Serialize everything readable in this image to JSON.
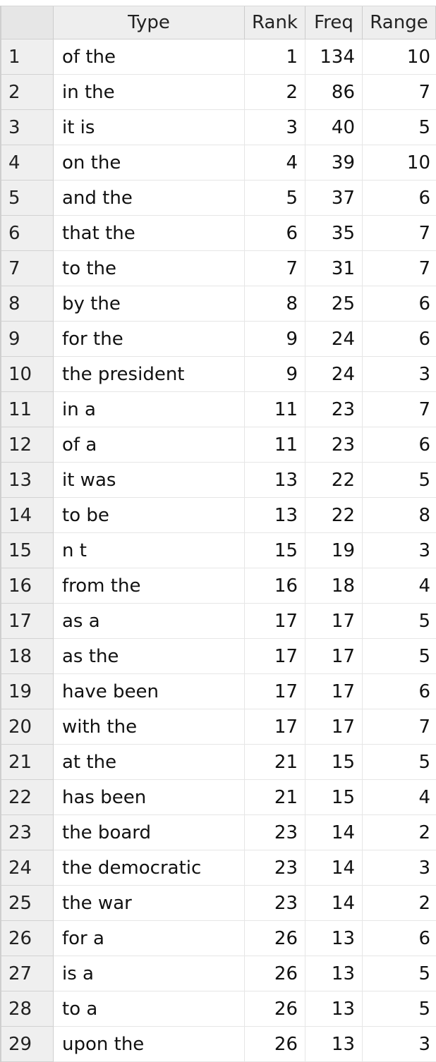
{
  "table": {
    "headers": {
      "index": "",
      "type": "Type",
      "rank": "Rank",
      "freq": "Freq",
      "range": "Range"
    },
    "rows": [
      {
        "index": "1",
        "type": "of the",
        "rank": "1",
        "freq": "134",
        "range": "10"
      },
      {
        "index": "2",
        "type": "in the",
        "rank": "2",
        "freq": "86",
        "range": "7"
      },
      {
        "index": "3",
        "type": "it is",
        "rank": "3",
        "freq": "40",
        "range": "5"
      },
      {
        "index": "4",
        "type": "on the",
        "rank": "4",
        "freq": "39",
        "range": "10"
      },
      {
        "index": "5",
        "type": "and the",
        "rank": "5",
        "freq": "37",
        "range": "6"
      },
      {
        "index": "6",
        "type": "that the",
        "rank": "6",
        "freq": "35",
        "range": "7"
      },
      {
        "index": "7",
        "type": "to the",
        "rank": "7",
        "freq": "31",
        "range": "7"
      },
      {
        "index": "8",
        "type": "by the",
        "rank": "8",
        "freq": "25",
        "range": "6"
      },
      {
        "index": "9",
        "type": "for the",
        "rank": "9",
        "freq": "24",
        "range": "6"
      },
      {
        "index": "10",
        "type": "the president",
        "rank": "9",
        "freq": "24",
        "range": "3"
      },
      {
        "index": "11",
        "type": "in a",
        "rank": "11",
        "freq": "23",
        "range": "7"
      },
      {
        "index": "12",
        "type": "of a",
        "rank": "11",
        "freq": "23",
        "range": "6"
      },
      {
        "index": "13",
        "type": "it was",
        "rank": "13",
        "freq": "22",
        "range": "5"
      },
      {
        "index": "14",
        "type": "to be",
        "rank": "13",
        "freq": "22",
        "range": "8"
      },
      {
        "index": "15",
        "type": "n t",
        "rank": "15",
        "freq": "19",
        "range": "3"
      },
      {
        "index": "16",
        "type": "from the",
        "rank": "16",
        "freq": "18",
        "range": "4"
      },
      {
        "index": "17",
        "type": "as a",
        "rank": "17",
        "freq": "17",
        "range": "5"
      },
      {
        "index": "18",
        "type": "as the",
        "rank": "17",
        "freq": "17",
        "range": "5"
      },
      {
        "index": "19",
        "type": "have been",
        "rank": "17",
        "freq": "17",
        "range": "6"
      },
      {
        "index": "20",
        "type": "with the",
        "rank": "17",
        "freq": "17",
        "range": "7"
      },
      {
        "index": "21",
        "type": "at the",
        "rank": "21",
        "freq": "15",
        "range": "5"
      },
      {
        "index": "22",
        "type": "has been",
        "rank": "21",
        "freq": "15",
        "range": "4"
      },
      {
        "index": "23",
        "type": "the board",
        "rank": "23",
        "freq": "14",
        "range": "2"
      },
      {
        "index": "24",
        "type": "the democratic",
        "rank": "23",
        "freq": "14",
        "range": "3"
      },
      {
        "index": "25",
        "type": "the war",
        "rank": "23",
        "freq": "14",
        "range": "2"
      },
      {
        "index": "26",
        "type": "for a",
        "rank": "26",
        "freq": "13",
        "range": "6"
      },
      {
        "index": "27",
        "type": "is a",
        "rank": "26",
        "freq": "13",
        "range": "5"
      },
      {
        "index": "28",
        "type": "to a",
        "rank": "26",
        "freq": "13",
        "range": "5"
      },
      {
        "index": "29",
        "type": "upon the",
        "rank": "26",
        "freq": "13",
        "range": "3"
      }
    ]
  }
}
